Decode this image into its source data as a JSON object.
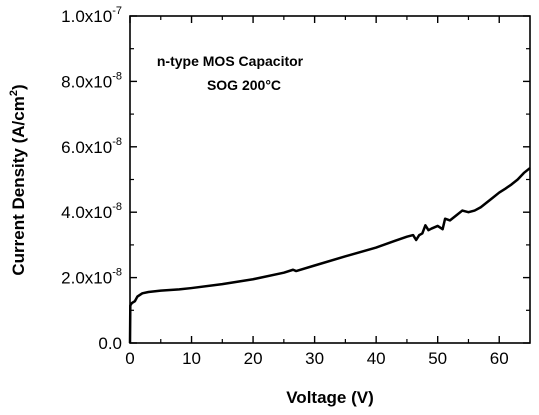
{
  "chart_data": {
    "type": "line",
    "title": "",
    "annotations": [
      "n-type MOS Capacitor",
      "SOG 200°C"
    ],
    "xlabel": "Voltage (V)",
    "ylabel_main": "Current Density (A/cm",
    "ylabel_sup": "2",
    "ylabel_close": ")",
    "xlim": [
      0,
      65
    ],
    "ylim": [
      0,
      1e-07
    ],
    "x_ticks": [
      0,
      10,
      20,
      30,
      40,
      50,
      60
    ],
    "x_tick_labels": [
      "0",
      "10",
      "20",
      "30",
      "40",
      "50",
      "60"
    ],
    "y_ticks": [
      {
        "value": 0,
        "mantissa": "0.0",
        "exponent": ""
      },
      {
        "value": 2e-08,
        "mantissa": "2.0x10",
        "exponent": "-8"
      },
      {
        "value": 4e-08,
        "mantissa": "4.0x10",
        "exponent": "-8"
      },
      {
        "value": 6e-08,
        "mantissa": "6.0x10",
        "exponent": "-8"
      },
      {
        "value": 8e-08,
        "mantissa": "8.0x10",
        "exponent": "-8"
      },
      {
        "value": 1e-07,
        "mantissa": "1.0x10",
        "exponent": "-7"
      }
    ],
    "grid": false,
    "legend": "none",
    "series": [
      {
        "color": "#000000",
        "points": [
          [
            0.0,
            0.0
          ],
          [
            0.05,
            1.15e-08
          ],
          [
            0.3,
            1.22e-08
          ],
          [
            0.8,
            1.28e-08
          ],
          [
            1.2,
            1.42e-08
          ],
          [
            2.0,
            1.52e-08
          ],
          [
            3.0,
            1.56e-08
          ],
          [
            5.0,
            1.6e-08
          ],
          [
            8.0,
            1.64e-08
          ],
          [
            10.0,
            1.68e-08
          ],
          [
            15.0,
            1.8e-08
          ],
          [
            20.0,
            1.95e-08
          ],
          [
            25.0,
            2.15e-08
          ],
          [
            26.5,
            2.24e-08
          ],
          [
            27.0,
            2.2e-08
          ],
          [
            30.0,
            2.37e-08
          ],
          [
            35.0,
            2.65e-08
          ],
          [
            40.0,
            2.92e-08
          ],
          [
            43.0,
            3.12e-08
          ],
          [
            45.0,
            3.25e-08
          ],
          [
            46.0,
            3.3e-08
          ],
          [
            46.5,
            3.15e-08
          ],
          [
            47.0,
            3.3e-08
          ],
          [
            47.5,
            3.35e-08
          ],
          [
            48.0,
            3.6e-08
          ],
          [
            48.5,
            3.45e-08
          ],
          [
            49.0,
            3.5e-08
          ],
          [
            50.0,
            3.58e-08
          ],
          [
            50.8,
            3.48e-08
          ],
          [
            51.2,
            3.8e-08
          ],
          [
            52.0,
            3.75e-08
          ],
          [
            53.0,
            3.9e-08
          ],
          [
            54.0,
            4.05e-08
          ],
          [
            55.0,
            4e-08
          ],
          [
            56.0,
            4.05e-08
          ],
          [
            57.0,
            4.15e-08
          ],
          [
            58.0,
            4.3e-08
          ],
          [
            59.0,
            4.45e-08
          ],
          [
            60.0,
            4.6e-08
          ],
          [
            61.0,
            4.72e-08
          ],
          [
            62.0,
            4.85e-08
          ],
          [
            63.0,
            5e-08
          ],
          [
            64.0,
            5.2e-08
          ],
          [
            65.0,
            5.35e-08
          ]
        ]
      }
    ]
  }
}
